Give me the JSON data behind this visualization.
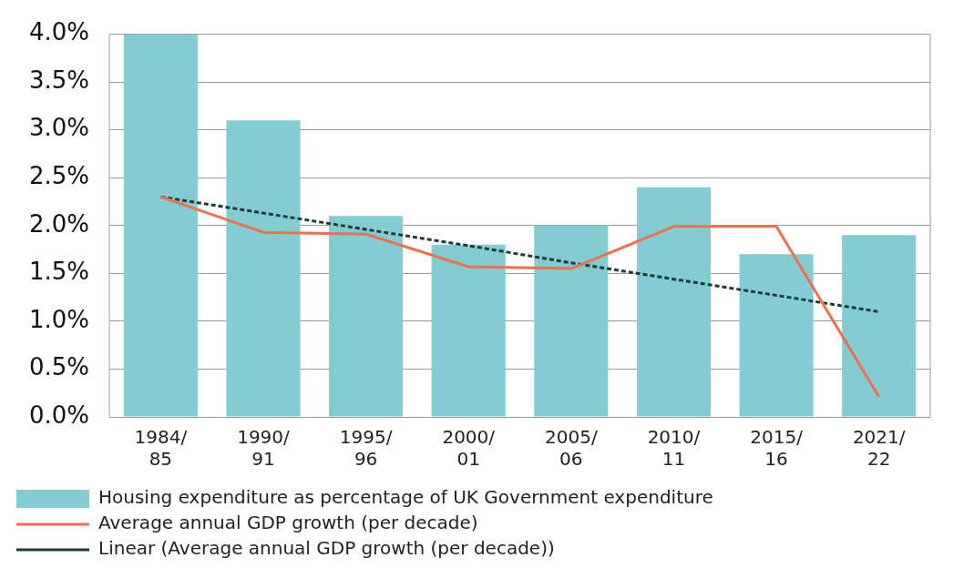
{
  "chart_data": {
    "type": "bar",
    "categories": [
      "1984/85",
      "1990/91",
      "1995/96",
      "2000/01",
      "2005/06",
      "2010/11",
      "2015/16",
      "2021/22"
    ],
    "series": [
      {
        "name": "Housing expenditure as percentage of UK Government expenditure",
        "color": "#83ccd2",
        "values": [
          4.0,
          3.1,
          2.1,
          1.8,
          2.0,
          2.4,
          1.7,
          1.9
        ]
      },
      {
        "name": "Average annual GDP growth (per decade)",
        "type": "line",
        "color": "#ef6f50",
        "values": [
          2.3,
          1.93,
          1.91,
          1.57,
          1.55,
          1.99,
          1.99,
          0.21
        ]
      },
      {
        "name": "Linear (Average annual GDP growth (per decade))",
        "type": "line",
        "color": "#1f3a3a",
        "line_style": "dashed",
        "values": [
          2.3,
          2.13,
          1.96,
          1.79,
          1.61,
          1.44,
          1.27,
          1.1
        ]
      }
    ],
    "ylim": [
      0,
      4
    ],
    "yticks": [
      {
        "value": 0,
        "label": "0.0%"
      },
      {
        "value": 0.5,
        "label": "0.5%"
      },
      {
        "value": 1,
        "label": "1.0%"
      },
      {
        "value": 1.5,
        "label": "1.5%"
      },
      {
        "value": 2,
        "label": "2.0%"
      },
      {
        "value": 2.5,
        "label": "2.5%"
      },
      {
        "value": 3,
        "label": "3.0%"
      },
      {
        "value": 3.5,
        "label": "3.5%"
      },
      {
        "value": 4,
        "label": "4.0%"
      }
    ],
    "grid": "y",
    "legend": "bottom",
    "marker": "none"
  }
}
